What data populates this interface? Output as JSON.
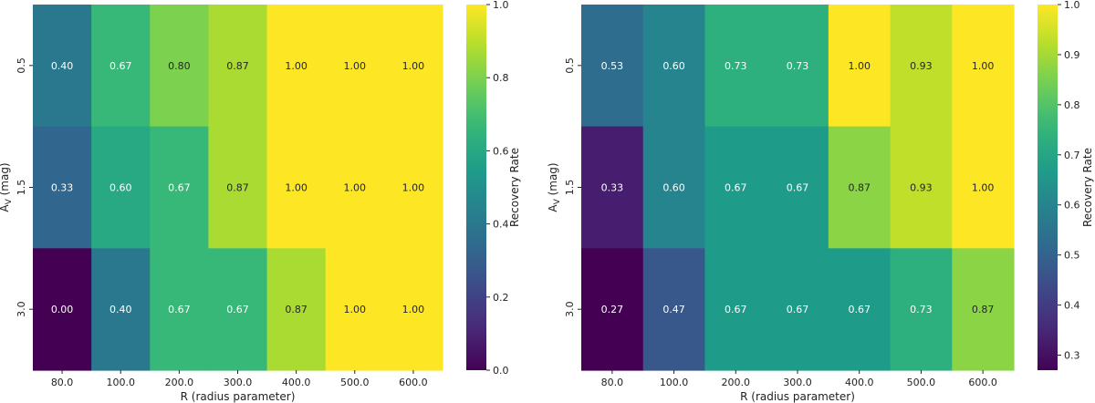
{
  "chart_data": [
    {
      "type": "heatmap",
      "title": "",
      "xlabel": "R (radius parameter)",
      "ylabel": "A",
      "ylabel_sub": "V",
      "ylabel_unit": " (mag)",
      "x_categories": [
        "80.0",
        "100.0",
        "200.0",
        "300.0",
        "400.0",
        "500.0",
        "600.0"
      ],
      "y_categories": [
        "0.5",
        "1.5",
        "3.0"
      ],
      "values": [
        [
          0.4,
          0.67,
          0.8,
          0.87,
          1.0,
          1.0,
          1.0
        ],
        [
          0.33,
          0.6,
          0.67,
          0.87,
          1.0,
          1.0,
          1.0
        ],
        [
          0.0,
          0.4,
          0.67,
          0.67,
          0.87,
          1.0,
          1.0
        ]
      ],
      "cell_labels": [
        [
          "0.40",
          "0.67",
          "0.80",
          "0.87",
          "1.00",
          "1.00",
          "1.00"
        ],
        [
          "0.33",
          "0.60",
          "0.67",
          "0.87",
          "1.00",
          "1.00",
          "1.00"
        ],
        [
          "0.00",
          "0.40",
          "0.67",
          "0.67",
          "0.87",
          "1.00",
          "1.00"
        ]
      ],
      "colormap": "viridis",
      "vmin": 0.0,
      "vmax": 1.0,
      "colorbar_label": "Recovery Rate",
      "colorbar_ticks": [
        0.0,
        0.2,
        0.4,
        0.6,
        0.8,
        1.0
      ],
      "colorbar_tick_labels": [
        "0.0",
        "0.2",
        "0.4",
        "0.6",
        "0.8",
        "1.0"
      ]
    },
    {
      "type": "heatmap",
      "title": "",
      "xlabel": "R (radius parameter)",
      "ylabel": "A",
      "ylabel_sub": "V",
      "ylabel_unit": " (mag)",
      "x_categories": [
        "80.0",
        "100.0",
        "200.0",
        "300.0",
        "400.0",
        "500.0",
        "600.0"
      ],
      "y_categories": [
        "0.5",
        "1.5",
        "3.0"
      ],
      "values": [
        [
          0.53,
          0.6,
          0.73,
          0.73,
          1.0,
          0.93,
          1.0
        ],
        [
          0.33,
          0.6,
          0.67,
          0.67,
          0.87,
          0.93,
          1.0
        ],
        [
          0.27,
          0.47,
          0.67,
          0.67,
          0.67,
          0.73,
          0.87
        ]
      ],
      "cell_labels": [
        [
          "0.53",
          "0.60",
          "0.73",
          "0.73",
          "1.00",
          "0.93",
          "1.00"
        ],
        [
          "0.33",
          "0.60",
          "0.67",
          "0.67",
          "0.87",
          "0.93",
          "1.00"
        ],
        [
          "0.27",
          "0.47",
          "0.67",
          "0.67",
          "0.67",
          "0.73",
          "0.87"
        ]
      ],
      "colormap": "viridis",
      "vmin": 0.27,
      "vmax": 1.0,
      "colorbar_label": "Recovery Rate",
      "colorbar_ticks": [
        0.3,
        0.4,
        0.5,
        0.6,
        0.7,
        0.8,
        0.9,
        1.0
      ],
      "colorbar_tick_labels": [
        "0.3",
        "0.4",
        "0.5",
        "0.6",
        "0.7",
        "0.8",
        "0.9",
        "1.0"
      ]
    }
  ]
}
